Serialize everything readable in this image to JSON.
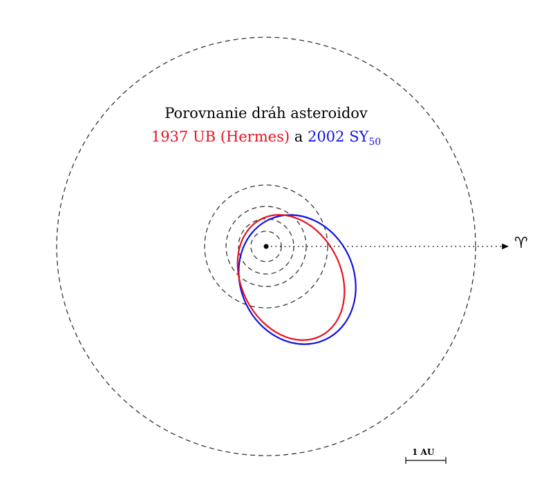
{
  "title": {
    "line1": "Porovnanie dráh asteroidov",
    "asteroid1": "1937 UB (Hermes)",
    "connector": "a",
    "asteroid2_base": "2002 SY",
    "asteroid2_sub": "50"
  },
  "vernal_equinox_symbol": "♈︎",
  "scale_bar_label": "1 AU",
  "colors": {
    "hermes": "#e8101e",
    "sy50": "#1010e0",
    "planet_orbits": "#333333"
  },
  "planet_orbits": [
    "Mercury",
    "Venus",
    "Earth",
    "Mars",
    "Jupiter"
  ]
}
